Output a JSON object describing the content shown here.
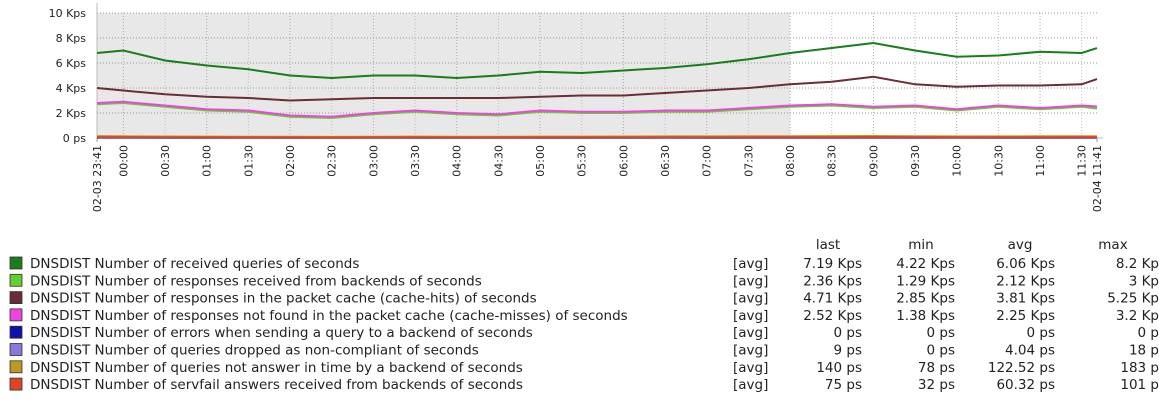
{
  "chart_data": {
    "type": "line",
    "x": [
      "02-03 23:41",
      "02-04 00:00",
      "02-04 00:30",
      "02-04 01:00",
      "02-04 01:30",
      "02-04 02:00",
      "02-04 02:30",
      "02-04 03:00",
      "02-04 03:30",
      "02-04 04:00",
      "02-04 04:30",
      "02-04 05:00",
      "02-04 05:30",
      "02-04 06:00",
      "02-04 06:30",
      "02-04 07:00",
      "02-04 07:30",
      "02-04 08:00",
      "02-04 08:30",
      "02-04 09:00",
      "02-04 09:30",
      "02-04 10:00",
      "02-04 10:30",
      "02-04 11:00",
      "02-04 11:30",
      "02-04 11:41"
    ],
    "xlim": [
      "02-03 23:41",
      "02-04 11:41"
    ],
    "shaded_range": [
      "02-03 23:41",
      "02-04 08:00"
    ],
    "xticks": [
      "02-03 23:41",
      {
        "value": "02-04 00:00",
        "label": "00:00"
      },
      {
        "value": "02-04 00:30",
        "label": "00:30"
      },
      {
        "value": "02-04 01:00",
        "label": "01:00"
      },
      {
        "value": "02-04 01:30",
        "label": "01:30"
      },
      {
        "value": "02-04 02:00",
        "label": "02:00"
      },
      {
        "value": "02-04 02:30",
        "label": "02:30"
      },
      {
        "value": "02-04 03:00",
        "label": "03:00"
      },
      {
        "value": "02-04 03:30",
        "label": "03:30"
      },
      {
        "value": "02-04 04:00",
        "label": "04:00"
      },
      {
        "value": "02-04 04:30",
        "label": "04:30"
      },
      {
        "value": "02-04 05:00",
        "label": "05:00"
      },
      {
        "value": "02-04 05:30",
        "label": "05:30"
      },
      {
        "value": "02-04 06:00",
        "label": "06:00"
      },
      {
        "value": "02-04 06:30",
        "label": "06:30"
      },
      {
        "value": "02-04 07:00",
        "label": "07:00"
      },
      {
        "value": "02-04 07:30",
        "label": "07:30"
      },
      {
        "value": "02-04 08:00",
        "label": "08:00"
      },
      {
        "value": "02-04 08:30",
        "label": "08:30"
      },
      {
        "value": "02-04 09:00",
        "label": "09:00"
      },
      {
        "value": "02-04 09:30",
        "label": "09:30"
      },
      {
        "value": "02-04 10:00",
        "label": "10:00"
      },
      {
        "value": "02-04 10:30",
        "label": "10:30"
      },
      {
        "value": "02-04 11:00",
        "label": "11:00"
      },
      {
        "value": "02-04 11:30",
        "label": "11:30"
      },
      "02-04 11:41"
    ],
    "ylim": [
      0,
      10000
    ],
    "yticks": [
      {
        "value": 0,
        "label": "0 ps"
      },
      {
        "value": 2000,
        "label": "2 Kps"
      },
      {
        "value": 4000,
        "label": "4 Kps"
      },
      {
        "value": 6000,
        "label": "6 Kps"
      },
      {
        "value": 8000,
        "label": "8 Kps"
      },
      {
        "value": 10000,
        "label": "10 Kps"
      }
    ],
    "grid": true,
    "legend_columns": [
      "last",
      "min",
      "avg",
      "max"
    ],
    "series": [
      {
        "name": "DNSDIST Number of received queries of seconds",
        "color": "#1a7c1a",
        "func": "[avg]",
        "last": "7.19 Kps",
        "min": "4.22 Kps",
        "avg": "6.06 Kps",
        "max": "8.2 Kp",
        "values": [
          6800,
          7000,
          6200,
          5800,
          5500,
          5000,
          4800,
          5000,
          5000,
          4800,
          5000,
          5300,
          5200,
          5400,
          5600,
          5900,
          6300,
          6800,
          7200,
          7600,
          7000,
          6500,
          6600,
          6900,
          6800,
          7190
        ]
      },
      {
        "name": "DNSDIST Number of responses received from backends of seconds",
        "color": "#66cc33",
        "func": "[avg]",
        "last": "2.36 Kps",
        "min": "1.29 Kps",
        "avg": "2.12 Kps",
        "max": "3 Kp",
        "values": [
          2700,
          2800,
          2500,
          2200,
          2100,
          1700,
          1600,
          1900,
          2100,
          1900,
          1800,
          2100,
          2000,
          2000,
          2100,
          2100,
          2300,
          2500,
          2600,
          2400,
          2500,
          2200,
          2500,
          2300,
          2500,
          2360
        ]
      },
      {
        "name": "DNSDIST Number of responses in the packet cache (cache-hits) of seconds",
        "color": "#6a2c35",
        "func": "[avg]",
        "last": "4.71 Kps",
        "min": "2.85 Kps",
        "avg": "3.81 Kps",
        "max": "5.25 Kp",
        "values": [
          4000,
          3800,
          3500,
          3300,
          3200,
          3000,
          3100,
          3200,
          3200,
          3200,
          3200,
          3300,
          3400,
          3400,
          3600,
          3800,
          4000,
          4300,
          4500,
          4900,
          4300,
          4100,
          4200,
          4200,
          4300,
          4710
        ]
      },
      {
        "name": "DNSDIST Number of responses  not found in the packet cache (cache-misses) of seconds",
        "color": "#ee44dd",
        "func": "[avg]",
        "last": "2.52 Kps",
        "min": "1.38 Kps",
        "avg": "2.25 Kps",
        "max": "3.2 Kp",
        "values": [
          2800,
          2900,
          2600,
          2300,
          2200,
          1800,
          1700,
          2000,
          2200,
          2000,
          1900,
          2200,
          2100,
          2100,
          2200,
          2200,
          2400,
          2600,
          2700,
          2500,
          2600,
          2300,
          2600,
          2400,
          2600,
          2520
        ]
      },
      {
        "name": "DNSDIST Number of errors when sending a query to a backend of seconds",
        "color": "#1010aa",
        "func": "[avg]",
        "last": "0 ps",
        "min": "0 ps",
        "avg": "0 ps",
        "max": "0 p",
        "values": [
          0,
          0,
          0,
          0,
          0,
          0,
          0,
          0,
          0,
          0,
          0,
          0,
          0,
          0,
          0,
          0,
          0,
          0,
          0,
          0,
          0,
          0,
          0,
          0,
          0,
          0
        ]
      },
      {
        "name": "DNSDIST Number of queries dropped as non-compliant of seconds",
        "color": "#8877dd",
        "func": "[avg]",
        "last": "9 ps",
        "min": "0 ps",
        "avg": "4.04 ps",
        "max": "18 p",
        "values": [
          4,
          3,
          5,
          4,
          3,
          4,
          2,
          3,
          4,
          5,
          3,
          4,
          5,
          4,
          3,
          4,
          5,
          6,
          4,
          5,
          4,
          3,
          4,
          5,
          6,
          9
        ]
      },
      {
        "name": "DNSDIST Number of queries not answer in time by a backend of seconds",
        "color": "#bb9922",
        "func": "[avg]",
        "last": "140 ps",
        "min": "78 ps",
        "avg": "122.52 ps",
        "max": "183 p",
        "values": [
          150,
          140,
          120,
          110,
          105,
          95,
          90,
          100,
          110,
          100,
          95,
          110,
          115,
          120,
          125,
          130,
          135,
          140,
          150,
          160,
          140,
          125,
          130,
          135,
          140,
          140
        ]
      },
      {
        "name": "DNSDIST Number of servfail answers received from backends of seconds",
        "color": "#dd4422",
        "func": "[avg]",
        "last": "75 ps",
        "min": "32 ps",
        "avg": "60.32 ps",
        "max": "101 p",
        "values": [
          70,
          72,
          60,
          55,
          50,
          45,
          42,
          48,
          55,
          50,
          45,
          55,
          58,
          60,
          62,
          65,
          68,
          72,
          75,
          80,
          70,
          62,
          65,
          68,
          70,
          75
        ]
      }
    ]
  }
}
